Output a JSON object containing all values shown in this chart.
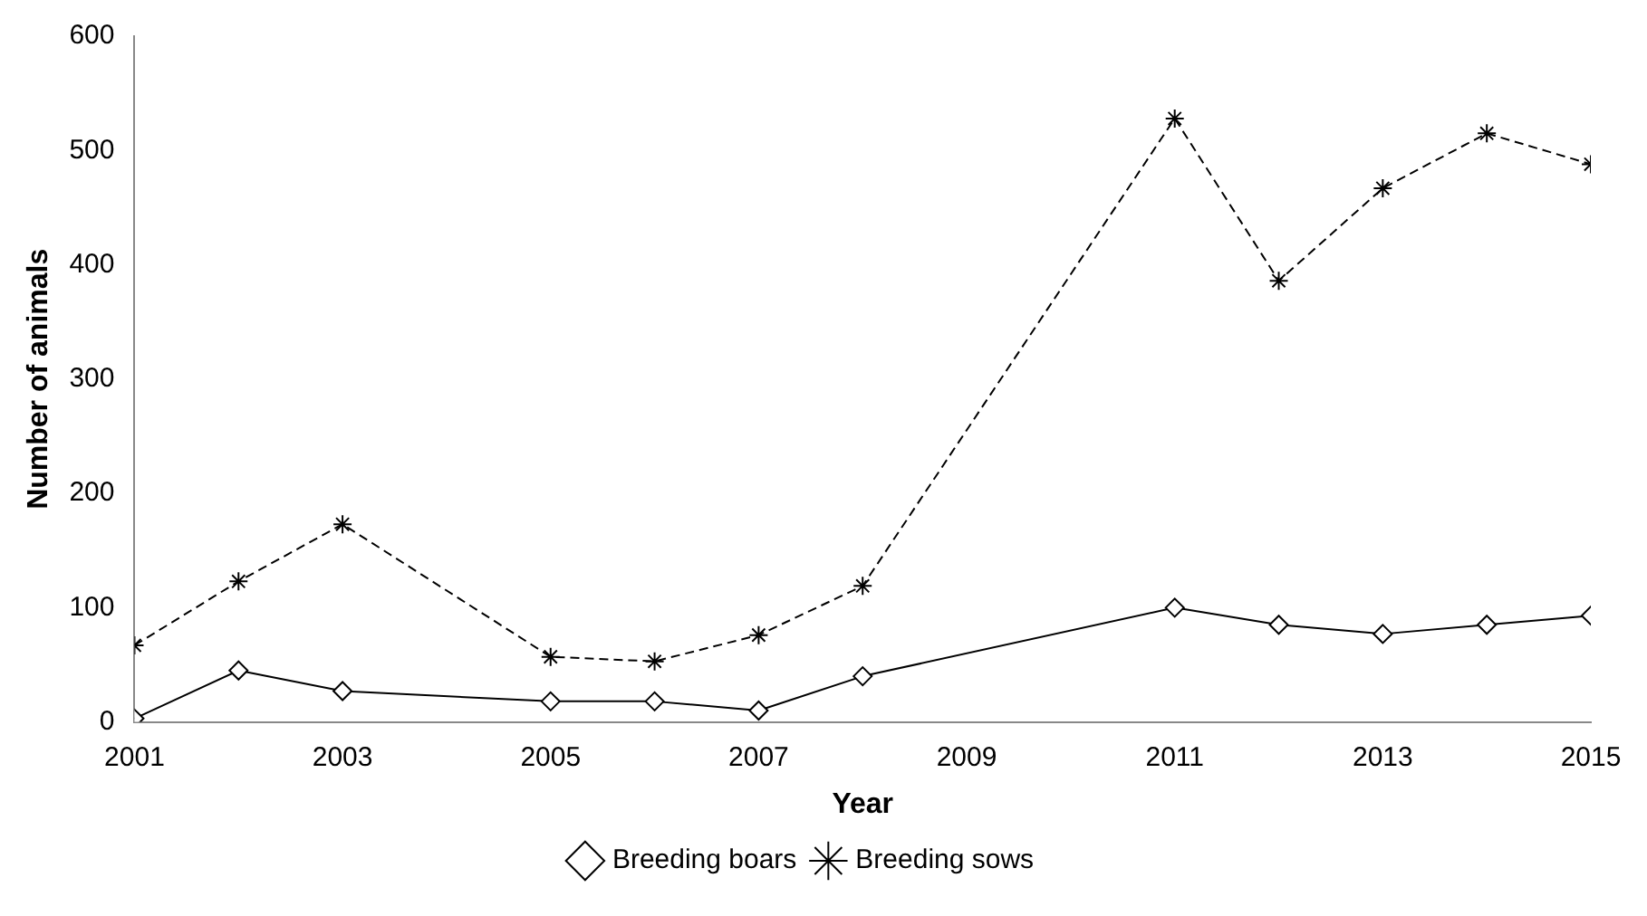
{
  "chart_data": {
    "type": "line",
    "xlabel": "Year",
    "ylabel": "Number of animals",
    "xlim": [
      2001,
      2015
    ],
    "xticks": [
      2001,
      2003,
      2005,
      2007,
      2009,
      2011,
      2013,
      2015
    ],
    "ylim": [
      0,
      600
    ],
    "yticks": [
      0,
      100,
      200,
      300,
      400,
      500,
      600
    ],
    "grid": false,
    "legend": "bottom",
    "series": [
      {
        "name": "Breeding boars",
        "color": "#000000",
        "marker": "diamond",
        "line_style": "solid",
        "x": [
          2001,
          2002,
          2003,
          2005,
          2006,
          2007,
          2008,
          2011,
          2012,
          2013,
          2014,
          2015
        ],
        "values": [
          3,
          45,
          27,
          18,
          18,
          10,
          40,
          100,
          85,
          77,
          85,
          93
        ]
      },
      {
        "name": "Breeding sows",
        "color": "#000000",
        "marker": "cross",
        "line_style": "dashed",
        "x": [
          2001,
          2002,
          2003,
          2005,
          2006,
          2007,
          2008,
          2011,
          2012,
          2013,
          2014,
          2015
        ],
        "values": [
          67,
          123,
          173,
          57,
          53,
          76,
          119,
          528,
          386,
          467,
          515,
          488
        ]
      }
    ]
  }
}
